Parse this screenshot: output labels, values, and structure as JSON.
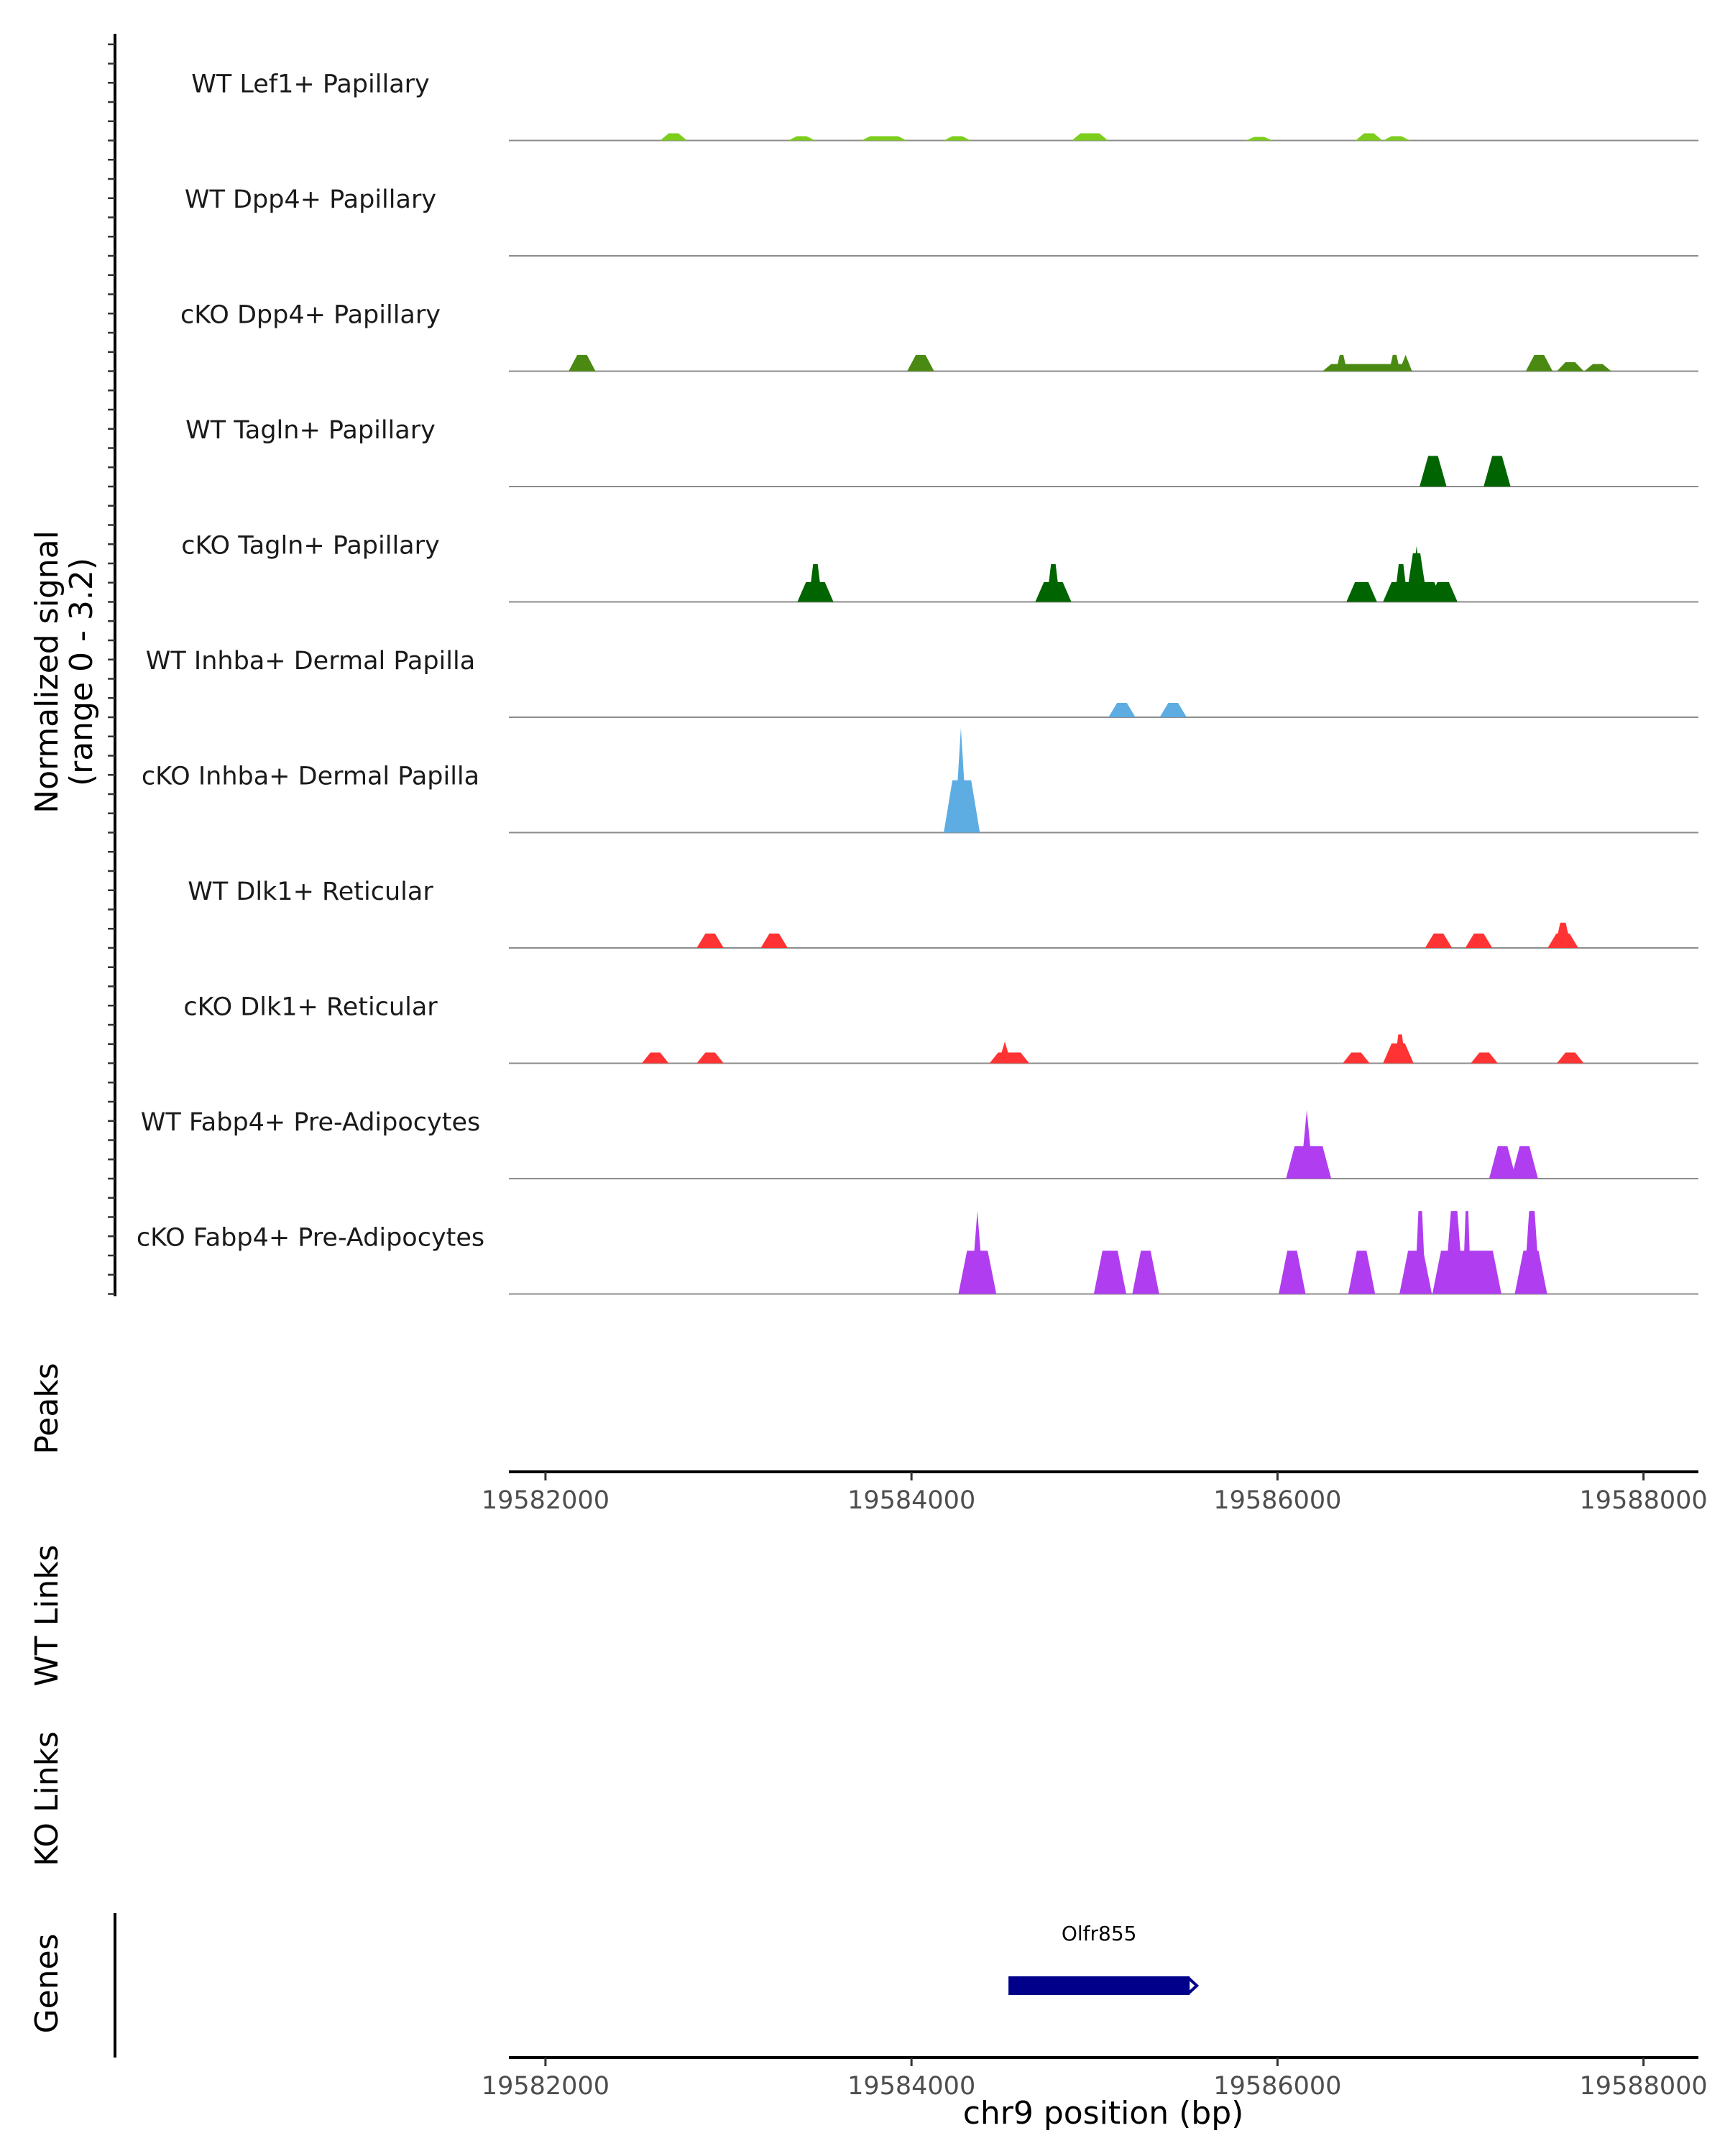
{
  "chart_data": {
    "type": "area",
    "xlabel": "chr9 position (bp)",
    "ylabel_line1": "Normalized signal",
    "ylabel_line2": "(range 0 - 3.2)",
    "ylim": [
      0,
      3.2
    ],
    "xlim": [
      19581800,
      19588300
    ],
    "x_ticks": [
      19582000,
      19584000,
      19586000,
      19588000
    ],
    "tracks": [
      {
        "name": "WT Lef1+ Papillary",
        "color": "#7CCD1C",
        "bins": [
          [
            19582650,
            19582750,
            0.2
          ],
          [
            19583350,
            19583450,
            0.12
          ],
          [
            19583750,
            19583950,
            0.12
          ],
          [
            19584200,
            19584300,
            0.12
          ],
          [
            19584900,
            19585050,
            0.2
          ],
          [
            19585850,
            19585950,
            0.1
          ],
          [
            19586450,
            19586550,
            0.2
          ],
          [
            19586600,
            19586700,
            0.12
          ]
        ],
        "spikes": []
      },
      {
        "name": "WT Dpp4+ Papillary",
        "color": "#5A9B10",
        "bins": [],
        "spikes": []
      },
      {
        "name": "cKO Dpp4+ Papillary",
        "color": "#4A8A12",
        "bins": [
          [
            19582150,
            19582250,
            0.45
          ],
          [
            19584000,
            19584100,
            0.45
          ],
          [
            19586270,
            19586700,
            0.2
          ],
          [
            19586330,
            19586370,
            0.45
          ],
          [
            19586620,
            19586660,
            0.45
          ],
          [
            19587380,
            19587480,
            0.45
          ],
          [
            19587550,
            19587650,
            0.25
          ],
          [
            19587700,
            19587800,
            0.2
          ]
        ],
        "spikes": [
          [
            19586700,
            0.45
          ]
        ]
      },
      {
        "name": "WT Tagln+ Papillary",
        "color": "#006400",
        "bins": [
          [
            19586800,
            19586900,
            0.85
          ],
          [
            19587150,
            19587250,
            0.85
          ]
        ],
        "spikes": []
      },
      {
        "name": "cKO Tagln+ Papillary",
        "color": "#006400",
        "bins": [
          [
            19583400,
            19583550,
            0.55
          ],
          [
            19583450,
            19583500,
            1.05
          ],
          [
            19584700,
            19584850,
            0.55
          ],
          [
            19584750,
            19584800,
            1.05
          ],
          [
            19586400,
            19586520,
            0.55
          ],
          [
            19586600,
            19586880,
            0.55
          ],
          [
            19586650,
            19586700,
            1.05
          ],
          [
            19586720,
            19586800,
            1.35
          ],
          [
            19586850,
            19586960,
            0.55
          ]
        ],
        "spikes": [
          [
            19586760,
            1.55
          ]
        ]
      },
      {
        "name": "WT Inhba+ Dermal Papilla",
        "color": "#5DADE2",
        "bins": [
          [
            19585100,
            19585200,
            0.4
          ],
          [
            19585380,
            19585480,
            0.4
          ]
        ],
        "spikes": []
      },
      {
        "name": "cKO Inhba+ Dermal Papilla",
        "color": "#5DADE2",
        "bins": [
          [
            19584200,
            19584350,
            1.45
          ]
        ],
        "spikes": [
          [
            19584270,
            2.9
          ]
        ]
      },
      {
        "name": "WT Dlk1+ Reticular",
        "color": "#FF3333",
        "bins": [
          [
            19582850,
            19582950,
            0.4
          ],
          [
            19583200,
            19583300,
            0.4
          ],
          [
            19586830,
            19586930,
            0.4
          ],
          [
            19587050,
            19587150,
            0.4
          ],
          [
            19587500,
            19587620,
            0.4
          ],
          [
            19587530,
            19587590,
            0.7
          ]
        ],
        "spikes": []
      },
      {
        "name": "cKO Dlk1+ Reticular",
        "color": "#FF3333",
        "bins": [
          [
            19582550,
            19582650,
            0.3
          ],
          [
            19582850,
            19582950,
            0.3
          ],
          [
            19584450,
            19584620,
            0.3
          ],
          [
            19586380,
            19586480,
            0.3
          ],
          [
            19586600,
            19586720,
            0.55
          ],
          [
            19586650,
            19586690,
            0.8
          ],
          [
            19587080,
            19587180,
            0.3
          ],
          [
            19587550,
            19587650,
            0.3
          ]
        ],
        "spikes": [
          [
            19584510,
            0.6
          ]
        ]
      },
      {
        "name": "WT Fabp4+ Pre-Adipocytes",
        "color": "#B03EF0",
        "bins": [
          [
            19586070,
            19586270,
            0.9
          ],
          [
            19587180,
            19587280,
            0.9
          ],
          [
            19587300,
            19587400,
            0.9
          ]
        ],
        "spikes": [
          [
            19586160,
            1.9
          ]
        ]
      },
      {
        "name": "cKO Fabp4+ Pre-Adipocytes",
        "color": "#B03EF0",
        "bins": [
          [
            19584280,
            19584440,
            1.2
          ],
          [
            19585020,
            19585150,
            1.2
          ],
          [
            19585230,
            19585330,
            1.2
          ],
          [
            19586030,
            19586130,
            1.2
          ],
          [
            19586410,
            19586510,
            1.2
          ],
          [
            19586690,
            19586820,
            1.2
          ],
          [
            19586760,
            19586800,
            2.3
          ],
          [
            19586870,
            19587200,
            1.2
          ],
          [
            19586930,
            19587000,
            2.3
          ],
          [
            19587020,
            19587050,
            2.3
          ],
          [
            19587320,
            19587450,
            1.2
          ],
          [
            19587360,
            19587420,
            2.3
          ]
        ],
        "spikes": [
          [
            19584360,
            2.3
          ]
        ]
      }
    ],
    "panels": {
      "peaks_label": "Peaks",
      "wt_links_label": "WT Links",
      "ko_links_label": "KO Links",
      "genes_label": "Genes"
    },
    "gene": {
      "name": "Olfr855",
      "start": 19584530,
      "end": 19585520,
      "color": "#00008B"
    }
  }
}
